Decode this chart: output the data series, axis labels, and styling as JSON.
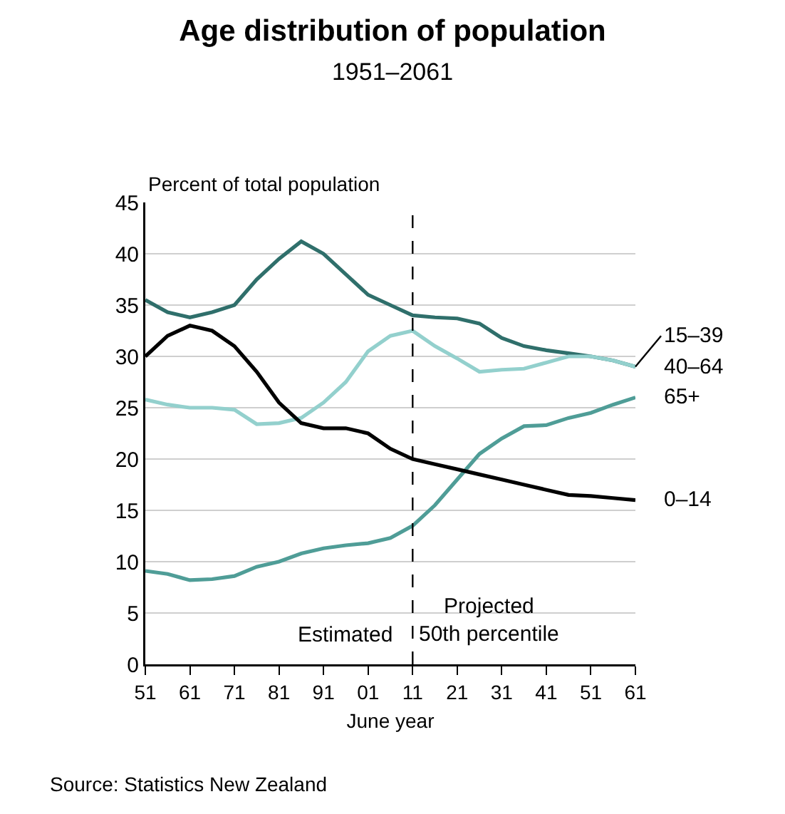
{
  "chart_data": {
    "type": "line",
    "title": "Age distribution of population",
    "subtitle": "1951–2061",
    "ylabel": "Percent of total population",
    "xlabel": "June year",
    "x": [
      1951,
      1956,
      1961,
      1966,
      1971,
      1976,
      1981,
      1986,
      1991,
      1996,
      2001,
      2006,
      2011,
      2016,
      2021,
      2026,
      2031,
      2036,
      2041,
      2046,
      2051,
      2056,
      2061
    ],
    "series": [
      {
        "name": "15–39",
        "color": "#2f6f6b",
        "values": [
          35.5,
          34.3,
          33.8,
          34.3,
          35,
          37.5,
          39.5,
          41.2,
          40,
          38,
          36,
          35,
          34,
          33.8,
          33.7,
          33.2,
          31.8,
          31,
          30.6,
          30.3,
          30,
          29.6,
          29
        ]
      },
      {
        "name": "40–64",
        "color": "#93d0cd",
        "values": [
          25.8,
          25.3,
          25,
          25,
          24.8,
          23.4,
          23.5,
          24,
          25.5,
          27.5,
          30.5,
          32,
          32.5,
          31,
          29.8,
          28.5,
          28.7,
          28.8,
          29.4,
          30,
          30,
          29.6,
          29
        ]
      },
      {
        "name": "65+",
        "color": "#4f9d97",
        "values": [
          9.1,
          8.8,
          8.2,
          8.3,
          8.6,
          9.5,
          10,
          10.8,
          11.3,
          11.6,
          11.8,
          12.3,
          13.5,
          15.5,
          18,
          20.5,
          22,
          23.2,
          23.3,
          24,
          24.5,
          25.3,
          26
        ]
      },
      {
        "name": "0–14",
        "color": "#000000",
        "values": [
          30,
          32,
          33,
          32.5,
          31,
          28.5,
          25.5,
          23.5,
          23,
          23,
          22.5,
          21,
          20,
          19.5,
          19,
          18.5,
          18,
          17.5,
          17,
          16.5,
          16.4,
          16.2,
          16
        ]
      }
    ],
    "xlim": [
      1951,
      2061
    ],
    "xticks": [
      {
        "value": 1951,
        "label": "51"
      },
      {
        "value": 1961,
        "label": "61"
      },
      {
        "value": 1971,
        "label": "71"
      },
      {
        "value": 1981,
        "label": "81"
      },
      {
        "value": 1991,
        "label": "91"
      },
      {
        "value": 2001,
        "label": "01"
      },
      {
        "value": 2011,
        "label": "11"
      },
      {
        "value": 2021,
        "label": "21"
      },
      {
        "value": 2031,
        "label": "31"
      },
      {
        "value": 2041,
        "label": "41"
      },
      {
        "value": 2051,
        "label": "51"
      },
      {
        "value": 2061,
        "label": "61"
      }
    ],
    "ylim": [
      0,
      45
    ],
    "yticks": [
      0,
      5,
      10,
      15,
      20,
      25,
      30,
      35,
      40,
      45
    ],
    "grid": "y",
    "legend": false,
    "line_style": "solid",
    "marker": "none",
    "ref_lines": [
      {
        "axis": "x",
        "value": 2011,
        "line_style": "dashed",
        "color": "#000000"
      }
    ],
    "annotations": [
      "Estimated",
      "Projected\n50th percentile",
      "Source: Statistics New Zealand"
    ]
  }
}
